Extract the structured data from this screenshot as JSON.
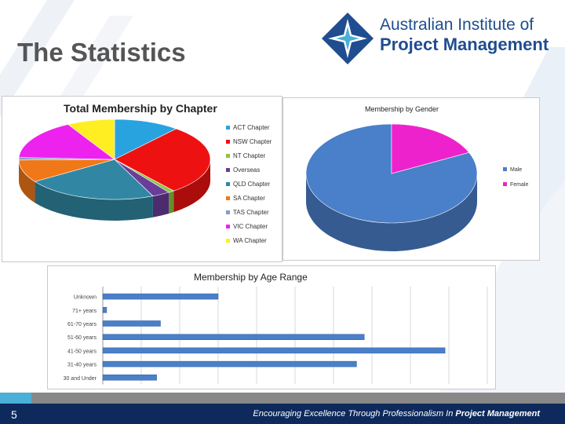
{
  "slide": {
    "title": "The Statistics",
    "page_number": "5",
    "tagline_prefix": "Encouraging Excellence Through Professionalism In ",
    "tagline_bold": "Project Management"
  },
  "logo": {
    "line1": "Australian Institute of",
    "line2": "Project Management",
    "icon": "aipm-diamond-star-icon",
    "color": "#1f4d8f"
  },
  "colors": {
    "footer": "#0e2a5c",
    "accent": "#4ab0d8"
  },
  "chart_data": [
    {
      "type": "pie",
      "title": "Total Membership by Chapter",
      "labels": [
        "ACT Chapter",
        "NSW Chapter",
        "NT Chapter",
        "Overseas",
        "QLD Chapter",
        "SA Chapter",
        "TAS Chapter",
        "VIC Chapter",
        "WA Chapter"
      ],
      "values": [
        11,
        28,
        1,
        3,
        22,
        9,
        1,
        16,
        8
      ],
      "colors": [
        "#29a3e0",
        "#ee1111",
        "#8cc63f",
        "#6a3d9a",
        "#3187a3",
        "#f07818",
        "#7f9fcf",
        "#ee22ee",
        "#ffee22"
      ],
      "legend": "right",
      "style": "3d"
    },
    {
      "type": "pie",
      "title": "Membership by Gender",
      "labels": [
        "Male",
        "Female"
      ],
      "values": [
        82,
        18
      ],
      "colors": [
        "#4a7fc9",
        "#ee22cc"
      ],
      "legend": "right",
      "style": "3d"
    },
    {
      "type": "bar",
      "orientation": "horizontal",
      "title": "Membership by Age Range",
      "categories": [
        "Unknown",
        "71+ years",
        "61-70 years",
        "51-60 years",
        "41-50 years",
        "31-40 years",
        "30 and Under"
      ],
      "values": [
        150,
        5,
        75,
        340,
        445,
        330,
        70
      ],
      "xlim": [
        0,
        500
      ],
      "color": "#4a7fc9",
      "grid": true
    }
  ]
}
